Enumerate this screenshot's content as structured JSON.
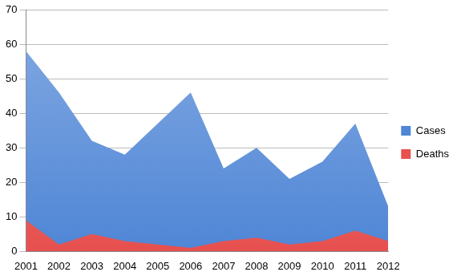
{
  "chart_data": {
    "type": "area",
    "categories": [
      "2001",
      "2002",
      "2003",
      "2004",
      "2005",
      "2006",
      "2007",
      "2008",
      "2009",
      "2010",
      "2011",
      "2012"
    ],
    "series": [
      {
        "name": "Cases",
        "color": "#4f86d6",
        "values": [
          58,
          46,
          32,
          28,
          37,
          46,
          24,
          30,
          21,
          26,
          37,
          13
        ]
      },
      {
        "name": "Deaths",
        "color": "#e6504e",
        "values": [
          9,
          2,
          5,
          3,
          2,
          1,
          3,
          4,
          2,
          3,
          6,
          3
        ]
      }
    ],
    "ylim": [
      0,
      70
    ],
    "yticks": [
      0,
      10,
      20,
      30,
      40,
      50,
      60,
      70
    ],
    "grid": true,
    "legend": "right"
  }
}
